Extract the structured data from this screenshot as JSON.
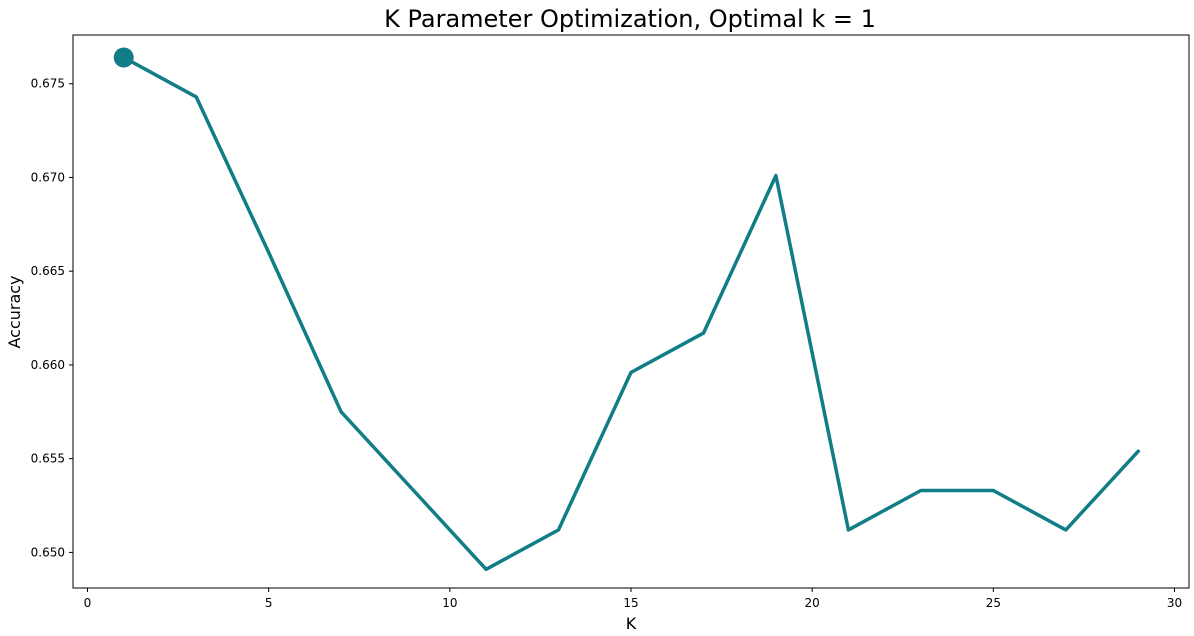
{
  "chart_data": {
    "type": "line",
    "title": "K Parameter Optimization, Optimal k = 1",
    "xlabel": "K",
    "ylabel": "Accuracy",
    "xlim": [
      -0.4,
      30.4
    ],
    "ylim": [
      0.6481,
      0.6776
    ],
    "xticks": [
      0,
      5,
      10,
      15,
      20,
      25,
      30
    ],
    "yticks": [
      0.65,
      0.655,
      0.66,
      0.665,
      0.67,
      0.675
    ],
    "ytick_labels": [
      "0.650",
      "0.655",
      "0.660",
      "0.665",
      "0.670",
      "0.675"
    ],
    "grid": false,
    "line_color": "#107d87",
    "series": [
      {
        "x": [
          1,
          3,
          5,
          7,
          9,
          11,
          13,
          15,
          17,
          19,
          21,
          23,
          25,
          27,
          29
        ],
        "values": [
          0.6764,
          0.6743,
          0.666,
          0.6575,
          0.6533,
          0.6491,
          0.6512,
          0.6596,
          0.6617,
          0.6701,
          0.6512,
          0.6533,
          0.6533,
          0.6512,
          0.6554
        ]
      }
    ],
    "highlight_point": {
      "x": 1,
      "y": 0.6764
    }
  }
}
